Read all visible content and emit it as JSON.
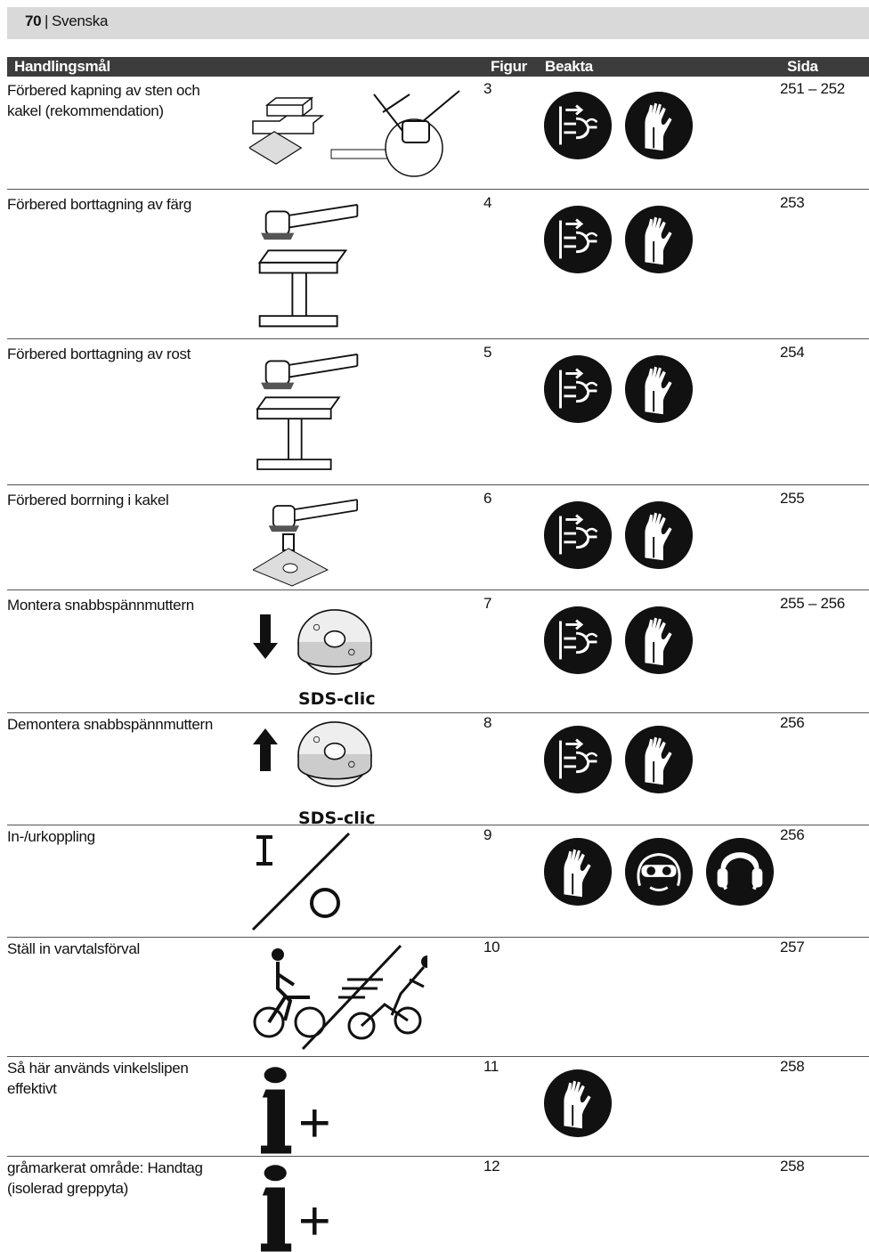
{
  "header": {
    "page": "70",
    "separator": "|",
    "language": "Svenska"
  },
  "table": {
    "columns": [
      "Handlingsmål",
      "Figur",
      "Beakta",
      "Sida"
    ],
    "rows": [
      {
        "action": "Förbered kapning av sten och kakel (rekommendation)",
        "figure": "3",
        "page": "251 – 252"
      },
      {
        "action": "Förbered borttagning av färg",
        "figure": "4",
        "page": "253"
      },
      {
        "action": "Förbered borttagning av rost",
        "figure": "5",
        "page": "254"
      },
      {
        "action": "Förbered borrning i kakel",
        "figure": "6",
        "page": "255"
      },
      {
        "action": "Montera snabbspännmuttern",
        "figure": "7",
        "page": "255 – 256",
        "image_label": "SDS-clic"
      },
      {
        "action": "Demontera snabbspännmuttern",
        "figure": "8",
        "page": "256",
        "image_label": "SDS-clic"
      },
      {
        "action": "In-/urkoppling",
        "figure": "9",
        "page": "256"
      },
      {
        "action": "Ställ in varvtalsförval",
        "figure": "10",
        "page": "257"
      },
      {
        "action": "Så här används vinkelslipen effektivt",
        "figure": "11",
        "page": "258"
      },
      {
        "action": "gråmarkerat område: Handtag (isolerad greppyta)",
        "figure": "12",
        "page": "258"
      }
    ]
  }
}
